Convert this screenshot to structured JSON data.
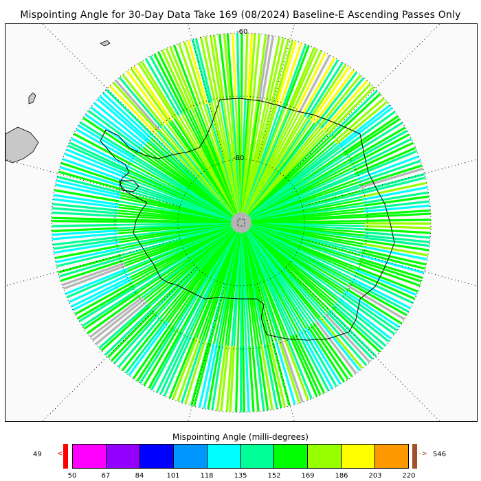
{
  "title": "Mispointing Angle for 30-Day Data Take 169 (08/2024) Baseline-E Ascending Passes Only",
  "map": {
    "projection": "south polar stereographic",
    "lat_labels": [
      "-60",
      "-80"
    ],
    "colors": {
      "land": "#c8c8c8",
      "no_data": "#b4b4b4",
      "background": "#fafafa",
      "coast": "#000000",
      "grid": "#000000"
    }
  },
  "colorbar": {
    "title": "Mispointing Angle (milli-degrees)",
    "min_label": "49",
    "max_label": "546",
    "under_arrow": "<",
    "over_arrow": "->",
    "under_color": "#ff0000",
    "over_color": "#a0522d",
    "ticks": [
      "50",
      "67",
      "84",
      "101",
      "118",
      "135",
      "152",
      "169",
      "186",
      "203",
      "220"
    ],
    "colors": [
      "#ff00ff",
      "#9400ff",
      "#0000ff",
      "#0096ff",
      "#00ffff",
      "#00ff96",
      "#00ff00",
      "#96ff00",
      "#ffff00",
      "#ff9900"
    ]
  }
}
